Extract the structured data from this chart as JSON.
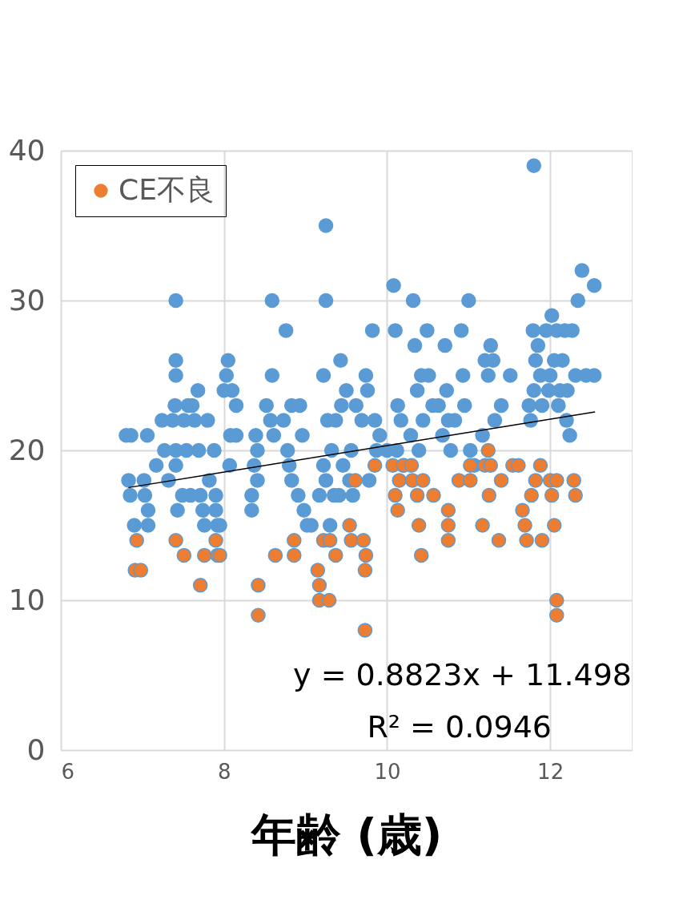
{
  "chart_data": {
    "type": "scatter",
    "xlabel": "年齢 (歳)",
    "xlim": [
      6,
      13
    ],
    "ylim": [
      0,
      40
    ],
    "xticks": [
      6,
      8,
      10,
      12
    ],
    "yticks": [
      0,
      10,
      20,
      30,
      40
    ],
    "grid": true,
    "legend": "top left",
    "annotations": [
      "y = 0.8823x + 11.498",
      "R² = 0.0946"
    ],
    "series": [
      {
        "color": "#5b9bd5",
        "marker": "circle",
        "x": [
          6.8,
          6.83,
          6.85,
          6.86,
          6.9,
          7.02,
          7.03,
          7.06,
          7.07,
          7.07,
          7.17,
          7.24,
          7.27,
          7.32,
          7.37,
          7.4,
          7.41,
          7.41,
          7.41,
          7.41,
          7.41,
          7.43,
          7.49,
          7.51,
          7.54,
          7.56,
          7.59,
          7.61,
          7.64,
          7.68,
          7.69,
          7.71,
          7.74,
          7.76,
          7.8,
          7.82,
          7.88,
          7.9,
          7.9,
          7.92,
          7.95,
          8.0,
          8.03,
          8.05,
          8.07,
          8.08,
          8.1,
          8.15,
          8.15,
          8.34,
          8.34,
          8.37,
          8.39,
          8.41,
          8.41,
          8.52,
          8.57,
          8.59,
          8.59,
          8.61,
          8.73,
          8.76,
          8.78,
          8.8,
          8.83,
          8.83,
          8.93,
          8.91,
          8.96,
          8.98,
          9.02,
          9.07,
          9.17,
          9.22,
          9.22,
          9.25,
          9.25,
          9.25,
          9.27,
          9.3,
          9.32,
          9.35,
          9.37,
          9.41,
          9.43,
          9.44,
          9.46,
          9.5,
          9.54,
          9.56,
          9.58,
          9.62,
          9.69,
          9.74,
          9.76,
          9.78,
          9.82,
          9.85,
          9.87,
          9.91,
          10.0,
          10.08,
          10.1,
          10.12,
          10.13,
          10.17,
          10.2,
          10.29,
          10.32,
          10.34,
          10.37,
          10.39,
          10.42,
          10.44,
          10.49,
          10.51,
          10.56,
          10.63,
          10.68,
          10.71,
          10.73,
          10.75,
          10.78,
          10.83,
          10.91,
          10.93,
          10.95,
          11.0,
          11.02,
          11.07,
          11.17,
          11.2,
          11.24,
          11.27,
          11.3,
          11.32,
          11.4,
          11.51,
          11.74,
          11.76,
          11.79,
          11.8,
          11.82,
          11.85,
          11.88,
          11.9,
          11.95,
          11.98,
          12.0,
          12.02,
          12.05,
          12.08,
          12.1,
          12.12,
          12.15,
          12.18,
          12.2,
          12.21,
          12.24,
          12.27,
          12.31,
          12.34,
          12.39,
          12.44,
          12.54,
          12.54,
          11.8
        ],
        "values": [
          21,
          18,
          17,
          21,
          15,
          18,
          17,
          21,
          16,
          15,
          19,
          22,
          20,
          18,
          22,
          23,
          30,
          26,
          25,
          20,
          19,
          16,
          17,
          22,
          20,
          23,
          17,
          23,
          22,
          24,
          20,
          17,
          16,
          15,
          22,
          18,
          20,
          17,
          16,
          15,
          15,
          24,
          25,
          26,
          19,
          21,
          24,
          21,
          23,
          16,
          17,
          19,
          21,
          20,
          18,
          23,
          22,
          30,
          25,
          21,
          22,
          28,
          20,
          19,
          18,
          23,
          23,
          17,
          21,
          16,
          15,
          15,
          17,
          25,
          19,
          35,
          30,
          18,
          22,
          15,
          20,
          17,
          22,
          17,
          26,
          23,
          19,
          24,
          18,
          20,
          17,
          23,
          22,
          25,
          24,
          18,
          28,
          22,
          20,
          21,
          20,
          31,
          28,
          20,
          23,
          22,
          19,
          21,
          30,
          27,
          24,
          20,
          25,
          22,
          28,
          25,
          23,
          23,
          21,
          27,
          24,
          22,
          20,
          22,
          28,
          25,
          23,
          30,
          20,
          19,
          21,
          26,
          25,
          27,
          26,
          22,
          23,
          25,
          23,
          22,
          28,
          24,
          26,
          27,
          25,
          23,
          28,
          24,
          25,
          29,
          26,
          28,
          23,
          24,
          26,
          28,
          22,
          24,
          21,
          28,
          25,
          30,
          32,
          25,
          31,
          25,
          39
        ]
      },
      {
        "name": "CE不良",
        "color": "#ed7d31",
        "marker": "circle",
        "x": [
          6.93,
          6.91,
          6.98,
          7.41,
          7.51,
          7.71,
          7.76,
          7.9,
          7.92,
          7.95,
          8.42,
          8.42,
          8.63,
          8.86,
          8.86,
          9.15,
          9.17,
          9.17,
          9.22,
          9.29,
          9.3,
          9.37,
          9.54,
          9.56,
          9.61,
          9.71,
          9.73,
          9.74,
          9.73,
          9.85,
          10.07,
          10.1,
          10.13,
          10.15,
          10.2,
          10.3,
          10.31,
          10.37,
          10.39,
          10.42,
          10.44,
          10.57,
          10.75,
          10.75,
          10.75,
          10.88,
          11.02,
          11.02,
          11.17,
          11.2,
          11.24,
          11.25,
          11.27,
          11.4,
          11.37,
          11.54,
          11.61,
          11.66,
          11.69,
          11.71,
          11.77,
          11.82,
          11.88,
          11.9,
          12.0,
          12.02,
          12.05,
          12.08,
          12.08,
          12.08,
          12.29,
          12.31
        ],
        "values": [
          14,
          12,
          12,
          14,
          13,
          11,
          13,
          14,
          13,
          13,
          11,
          9,
          13,
          14,
          13,
          12,
          11,
          10,
          14,
          10,
          14,
          13,
          15,
          14,
          18,
          14,
          12,
          13,
          8,
          19,
          19,
          17,
          16,
          18,
          19,
          19,
          18,
          17,
          15,
          13,
          18,
          17,
          16,
          15,
          14,
          18,
          19,
          18,
          15,
          19,
          20,
          17,
          19,
          18,
          14,
          19,
          19,
          16,
          15,
          14,
          17,
          18,
          19,
          14,
          18,
          17,
          15,
          18,
          10,
          9,
          18,
          17
        ]
      },
      {
        "type": "line",
        "color": "#000000",
        "marker": "none",
        "x": [
          6.83,
          12.55
        ],
        "values": [
          17.52,
          22.57
        ]
      }
    ]
  }
}
